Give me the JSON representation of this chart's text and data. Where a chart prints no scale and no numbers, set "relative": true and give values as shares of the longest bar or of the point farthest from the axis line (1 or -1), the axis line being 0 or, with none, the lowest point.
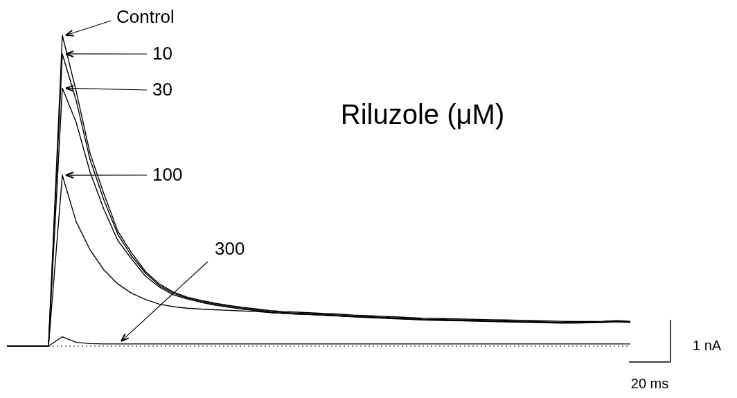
{
  "chart_data": {
    "type": "line",
    "title": "Riluzole (μM)",
    "relative": true,
    "categories": [
      null,
      null,
      null,
      null,
      null,
      null,
      null,
      null,
      null,
      null,
      null,
      null,
      null,
      null,
      null,
      null,
      null,
      null,
      null,
      null,
      null,
      null,
      null,
      null,
      null,
      null,
      null,
      null,
      null,
      null,
      null,
      null,
      null,
      null,
      null,
      null,
      null,
      null,
      null,
      null,
      null,
      null,
      null,
      null,
      null,
      null
    ],
    "series": [
      {
        "name": "Control",
        "color": "#000000",
        "values": [
          0,
          0,
          0,
          0,
          1.0,
          0.82,
          0.62,
          0.49,
          0.37,
          0.3,
          0.24,
          0.2,
          0.174,
          0.158,
          0.147,
          0.138,
          0.131,
          0.125,
          0.12,
          0.114,
          0.111,
          0.109,
          0.107,
          0.105,
          0.103,
          0.1,
          0.098,
          0.096,
          0.094,
          0.092,
          0.09,
          0.089,
          0.088,
          0.087,
          0.086,
          0.085,
          0.084,
          0.083,
          0.082,
          0.081,
          0.08,
          0.079,
          0.079,
          0.08,
          0.082,
          0.08
        ]
      },
      {
        "name": "10",
        "color": "#000000",
        "values": [
          0,
          0,
          0,
          0,
          0.94,
          0.79,
          0.6,
          0.47,
          0.36,
          0.29,
          0.235,
          0.195,
          0.17,
          0.155,
          0.144,
          0.135,
          0.128,
          0.122,
          0.117,
          0.111,
          0.108,
          0.106,
          0.104,
          0.102,
          0.1,
          0.097,
          0.095,
          0.093,
          0.091,
          0.089,
          0.087,
          0.086,
          0.085,
          0.084,
          0.083,
          0.082,
          0.081,
          0.08,
          0.079,
          0.078,
          0.077,
          0.076,
          0.077,
          0.078,
          0.08,
          0.078
        ]
      },
      {
        "name": "30",
        "color": "#000000",
        "values": [
          0,
          0,
          0,
          0,
          0.83,
          0.72,
          0.56,
          0.44,
          0.34,
          0.28,
          0.225,
          0.19,
          0.165,
          0.152,
          0.141,
          0.132,
          0.125,
          0.119,
          0.114,
          0.108,
          0.105,
          0.103,
          0.101,
          0.099,
          0.097,
          0.094,
          0.092,
          0.09,
          0.088,
          0.086,
          0.084,
          0.083,
          0.082,
          0.081,
          0.08,
          0.079,
          0.078,
          0.077,
          0.076,
          0.075,
          0.074,
          0.074,
          0.075,
          0.076,
          0.078,
          0.076
        ]
      },
      {
        "name": "100",
        "color": "#000000",
        "values": [
          0,
          0,
          0,
          0,
          0.55,
          0.4,
          0.31,
          0.245,
          0.2,
          0.17,
          0.15,
          0.135,
          0.127,
          0.122,
          0.119,
          0.117,
          0.115,
          0.113,
          0.111,
          0.108,
          0.105,
          0.103,
          0.101,
          0.099,
          0.097,
          0.095,
          0.093,
          0.091,
          0.089,
          0.087,
          0.085,
          0.084,
          0.083,
          0.082,
          0.081,
          0.08,
          0.079,
          0.078,
          0.077,
          0.076,
          0.075,
          0.075,
          0.076,
          0.077,
          0.079,
          0.077
        ]
      },
      {
        "name": "300",
        "color": "#000000",
        "values": [
          0,
          0,
          0,
          0,
          0.03,
          0.012,
          0.008,
          0.007,
          0.007,
          0.007,
          0.007,
          0.007,
          0.007,
          0.007,
          0.007,
          0.007,
          0.007,
          0.007,
          0.007,
          0.007,
          0.007,
          0.007,
          0.007,
          0.007,
          0.007,
          0.007,
          0.007,
          0.007,
          0.007,
          0.007,
          0.007,
          0.007,
          0.007,
          0.007,
          0.007,
          0.007,
          0.007,
          0.007,
          0.007,
          0.007,
          0.007,
          0.007,
          0.007,
          0.007,
          0.007,
          0.007
        ]
      }
    ],
    "legend": "top left",
    "ref_lines": [
      {
        "axis": "y",
        "value": 0,
        "line_style": "dotted",
        "color": "#000000"
      }
    ],
    "annotations": [
      "1 nA",
      "20 ms"
    ]
  }
}
